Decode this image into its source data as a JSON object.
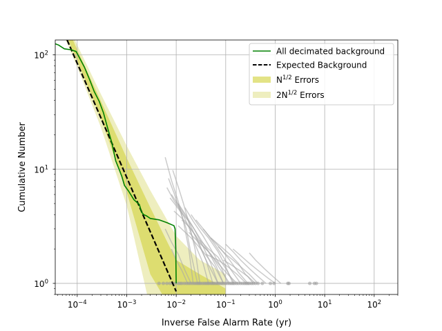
{
  "chart_data": {
    "type": "line",
    "title": "",
    "xlabel": "Inverse False Alarm Rate (yr)",
    "ylabel": "Cumulative Number",
    "xscale": "log",
    "yscale": "log",
    "xlim": [
      3.6e-05,
      300
    ],
    "ylim": [
      0.8,
      135
    ],
    "grid": true,
    "legend_position": "top-right",
    "x_ticks": [
      {
        "value": 0.0001,
        "base": "10",
        "exp": "−4"
      },
      {
        "value": 0.001,
        "base": "10",
        "exp": "−3"
      },
      {
        "value": 0.01,
        "base": "10",
        "exp": "−2"
      },
      {
        "value": 0.1,
        "base": "10",
        "exp": "−1"
      },
      {
        "value": 1,
        "base": "10",
        "exp": "0"
      },
      {
        "value": 10,
        "base": "10",
        "exp": "1"
      },
      {
        "value": 100,
        "base": "10",
        "exp": "2"
      }
    ],
    "y_ticks": [
      {
        "value": 1,
        "base": "10",
        "exp": "0"
      },
      {
        "value": 10,
        "base": "10",
        "exp": "1"
      },
      {
        "value": 100,
        "base": "10",
        "exp": "2"
      }
    ],
    "legend": [
      {
        "label": "All decimated background",
        "kind": "line",
        "color": "#008000"
      },
      {
        "label": "Expected Background",
        "kind": "dashed",
        "color": "#000000"
      },
      {
        "label_base": "N",
        "label_sup": "1/2",
        "label_tail": " Errors",
        "kind": "patch",
        "color": "#d4d445"
      },
      {
        "label_base": "2N",
        "label_sup": "1/2",
        "label_tail": " Errors",
        "kind": "patch",
        "color": "#ececb8"
      }
    ],
    "colors": {
      "main_line": "#008000",
      "expected": "#000000",
      "band_1sigma": "#d4d445",
      "band_2sigma": "#ececb8",
      "decimated": "#a8a8a8",
      "points": "#9a9a9a"
    },
    "series": [
      {
        "name": "All decimated background",
        "x": [
          3.6e-05,
          4.2e-05,
          5.5e-05,
          7.5e-05,
          9.5e-05,
          0.00011,
          0.00014,
          0.00018,
          0.00022,
          0.00028,
          0.00034,
          0.0004,
          0.00045,
          0.0005,
          0.00055,
          0.0006,
          0.0007,
          0.0008,
          0.0009,
          0.0011,
          0.0014,
          0.0018,
          0.002,
          0.0022,
          0.0025,
          0.003,
          0.0045,
          0.0065,
          0.009,
          0.0095,
          0.0098,
          0.01
        ],
        "y": [
          125,
          122,
          113,
          111,
          107,
          95,
          78,
          60,
          48,
          39,
          31,
          24,
          20,
          17,
          14,
          11.8,
          10,
          8.6,
          7.2,
          6.4,
          5.4,
          4.9,
          4.2,
          4.0,
          3.9,
          3.7,
          3.6,
          3.4,
          3.2,
          3.0,
          2.0,
          1.0
        ]
      },
      {
        "name": "Expected Background",
        "x": [
          6.25e-05,
          0.01
        ],
        "y": [
          135,
          0.85
        ]
      }
    ],
    "bands": {
      "x": [
        3.6e-05,
        0.0001,
        0.0003,
        0.001,
        0.003,
        0.01,
        0.03,
        0.1
      ],
      "n1_lower": [
        248,
        88.6,
        28.0,
        6.3,
        1.2,
        0.5,
        0.45,
        0.4
      ],
      "n1_upper": [
        305,
        111,
        39.5,
        12.5,
        4.6,
        1.6,
        1.2,
        0.9
      ],
      "n2_lower": [
        220,
        78.5,
        23.3,
        4.8,
        0.6,
        0.45,
        0.4,
        0.35
      ],
      "n2_upper": [
        335,
        122,
        45.5,
        16.0,
        6.5,
        2.6,
        1.6,
        1.2
      ]
    },
    "decimated_lines": [
      {
        "x": [
          0.006,
          0.008,
          0.011,
          0.014,
          0.018,
          0.022
        ],
        "y": [
          12.7,
          8.0,
          5.2,
          3.5,
          2.0,
          1.0
        ]
      },
      {
        "x": [
          0.0085,
          0.011,
          0.014,
          0.018,
          0.024,
          0.03
        ],
        "y": [
          9.8,
          7.0,
          5.0,
          3.4,
          2.0,
          1.0
        ]
      },
      {
        "x": [
          0.007,
          0.009,
          0.012,
          0.016,
          0.02,
          0.027
        ],
        "y": [
          8.3,
          6.2,
          4.3,
          3.0,
          1.8,
          1.0
        ]
      },
      {
        "x": [
          0.0065,
          0.009,
          0.013,
          0.018,
          0.024,
          0.035,
          0.045
        ],
        "y": [
          6.9,
          5.3,
          4.2,
          3.1,
          2.2,
          1.5,
          1.0
        ]
      },
      {
        "x": [
          0.008,
          0.012,
          0.018,
          0.026,
          0.04,
          0.055
        ],
        "y": [
          6.0,
          4.6,
          3.5,
          2.4,
          1.6,
          1.0
        ]
      },
      {
        "x": [
          0.011,
          0.016,
          0.024,
          0.035,
          0.05,
          0.07
        ],
        "y": [
          5.0,
          3.9,
          2.9,
          2.1,
          1.5,
          1.0
        ]
      },
      {
        "x": [
          0.0075,
          0.012,
          0.02,
          0.03,
          0.045,
          0.065,
          0.09
        ],
        "y": [
          5.6,
          4.3,
          3.3,
          2.5,
          1.9,
          1.4,
          1.0
        ]
      },
      {
        "x": [
          0.015,
          0.022,
          0.035,
          0.05,
          0.08,
          0.11
        ],
        "y": [
          4.6,
          3.5,
          2.6,
          2.0,
          1.4,
          1.0
        ]
      },
      {
        "x": [
          0.02,
          0.03,
          0.045,
          0.07,
          0.1,
          0.14
        ],
        "y": [
          4.0,
          3.1,
          2.5,
          1.9,
          1.4,
          1.0
        ]
      },
      {
        "x": [
          0.009,
          0.015,
          0.025,
          0.04,
          0.07
        ],
        "y": [
          4.3,
          3.5,
          2.6,
          1.6,
          1.0
        ]
      },
      {
        "x": [
          0.025,
          0.04,
          0.06,
          0.09,
          0.13,
          0.2
        ],
        "y": [
          3.6,
          2.8,
          2.2,
          1.7,
          1.3,
          1.0
        ]
      },
      {
        "x": [
          0.013,
          0.02,
          0.03,
          0.05,
          0.08,
          0.12
        ],
        "y": [
          3.6,
          3.0,
          2.3,
          1.8,
          1.3,
          1.0
        ]
      },
      {
        "x": [
          0.035,
          0.05,
          0.08,
          0.12,
          0.18,
          0.28
        ],
        "y": [
          3.0,
          2.5,
          2.0,
          1.6,
          1.25,
          1.0
        ]
      },
      {
        "x": [
          0.05,
          0.08,
          0.12,
          0.18,
          0.25,
          0.4
        ],
        "y": [
          2.5,
          2.1,
          1.8,
          1.5,
          1.2,
          1.0
        ]
      },
      {
        "x": [
          0.07,
          0.1,
          0.14,
          0.2,
          0.3,
          0.45
        ],
        "y": [
          2.1,
          1.8,
          1.6,
          1.4,
          1.2,
          1.0
        ]
      },
      {
        "x": [
          0.1,
          0.14,
          0.2,
          0.3,
          0.45,
          0.65
        ],
        "y": [
          2.2,
          1.9,
          1.6,
          1.35,
          1.15,
          1.0
        ]
      },
      {
        "x": [
          0.14,
          0.2,
          0.3,
          0.45,
          0.7,
          1.0
        ],
        "y": [
          2.0,
          1.75,
          1.5,
          1.3,
          1.12,
          1.0
        ]
      },
      {
        "x": [
          0.3,
          0.4,
          0.6,
          0.9,
          1.3
        ],
        "y": [
          1.85,
          1.6,
          1.35,
          1.15,
          1.0
        ]
      },
      {
        "x": [
          0.04,
          0.07,
          0.11,
          0.17,
          0.26
        ],
        "y": [
          1.8,
          1.6,
          1.4,
          1.2,
          1.0
        ]
      },
      {
        "x": [
          0.011,
          0.02,
          0.035,
          0.06,
          0.09
        ],
        "y": [
          3.2,
          2.5,
          1.9,
          1.4,
          1.0
        ]
      },
      {
        "x": [
          0.018,
          0.028,
          0.045,
          0.07,
          0.11,
          0.17
        ],
        "y": [
          2.8,
          2.3,
          1.9,
          1.5,
          1.2,
          1.0
        ]
      },
      {
        "x": [
          0.008,
          0.01,
          0.013,
          0.017
        ],
        "y": [
          2.0,
          1.6,
          1.3,
          1.0
        ]
      },
      {
        "x": [
          0.006,
          0.008,
          0.011,
          0.015,
          0.02
        ],
        "y": [
          3.0,
          2.3,
          1.8,
          1.3,
          1.0
        ]
      },
      {
        "x": [
          0.09,
          0.13,
          0.19,
          0.28,
          0.36
        ],
        "y": [
          1.6,
          1.45,
          1.3,
          1.15,
          1.0
        ]
      },
      {
        "x": [
          0.03,
          0.045,
          0.07,
          0.1,
          0.15
        ],
        "y": [
          2.4,
          2.0,
          1.7,
          1.35,
          1.0
        ]
      }
    ],
    "points_x": [
      0.0045,
      0.0055,
      0.0065,
      0.0075,
      0.0085,
      0.0095,
      0.011,
      0.012,
      0.013,
      0.0145,
      0.016,
      0.0175,
      0.019,
      0.021,
      0.023,
      0.025,
      0.027,
      0.029,
      0.031,
      0.034,
      0.037,
      0.04,
      0.043,
      0.046,
      0.05,
      0.054,
      0.058,
      0.063,
      0.068,
      0.073,
      0.079,
      0.085,
      0.092,
      0.1,
      0.11,
      0.12,
      0.13,
      0.14,
      0.15,
      0.165,
      0.18,
      0.2,
      0.22,
      0.24,
      0.26,
      0.28,
      0.3,
      0.33,
      0.36,
      0.4,
      0.45,
      0.55,
      0.8,
      0.95,
      1.8,
      1.9,
      5.0,
      6.2,
      6.8
    ]
  }
}
